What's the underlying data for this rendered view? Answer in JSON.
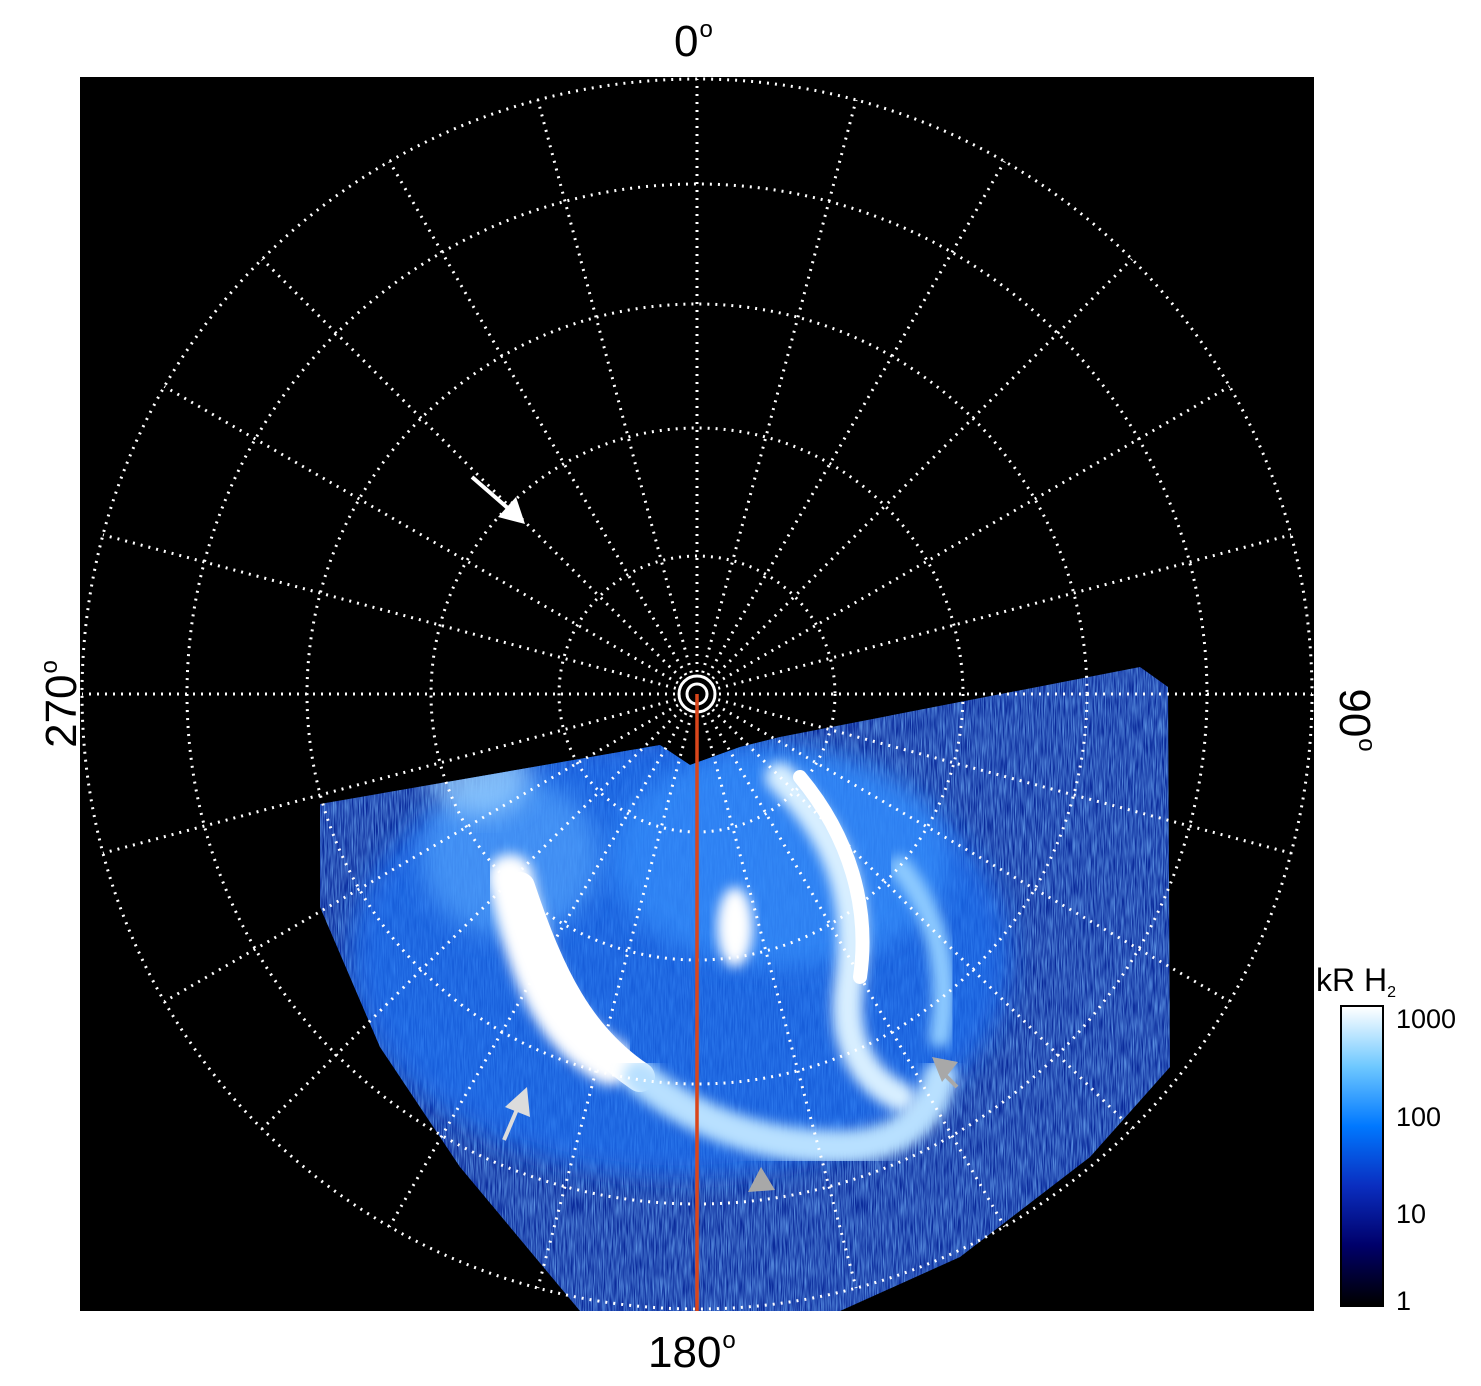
{
  "labels": {
    "top": "0",
    "bottom": "180",
    "left": "270",
    "right": "90",
    "degree_symbol": "o"
  },
  "colorbar": {
    "title_main": "kR H",
    "title_sub": "2",
    "ticks": [
      "1000",
      "100",
      "10",
      "1"
    ],
    "colors": [
      "#000000",
      "#00006a",
      "#0a2ec0",
      "#0078ff",
      "#6ec8ff",
      "#ffffff"
    ]
  },
  "colors": {
    "grid": "#ffffff",
    "meridian_line": "#d9461b",
    "arrow_white": "#ffffff",
    "arrow_gray": "#a8a8a8",
    "aurora_core": "#e8f6ff",
    "aurora_glow": "#2d8cff"
  }
}
